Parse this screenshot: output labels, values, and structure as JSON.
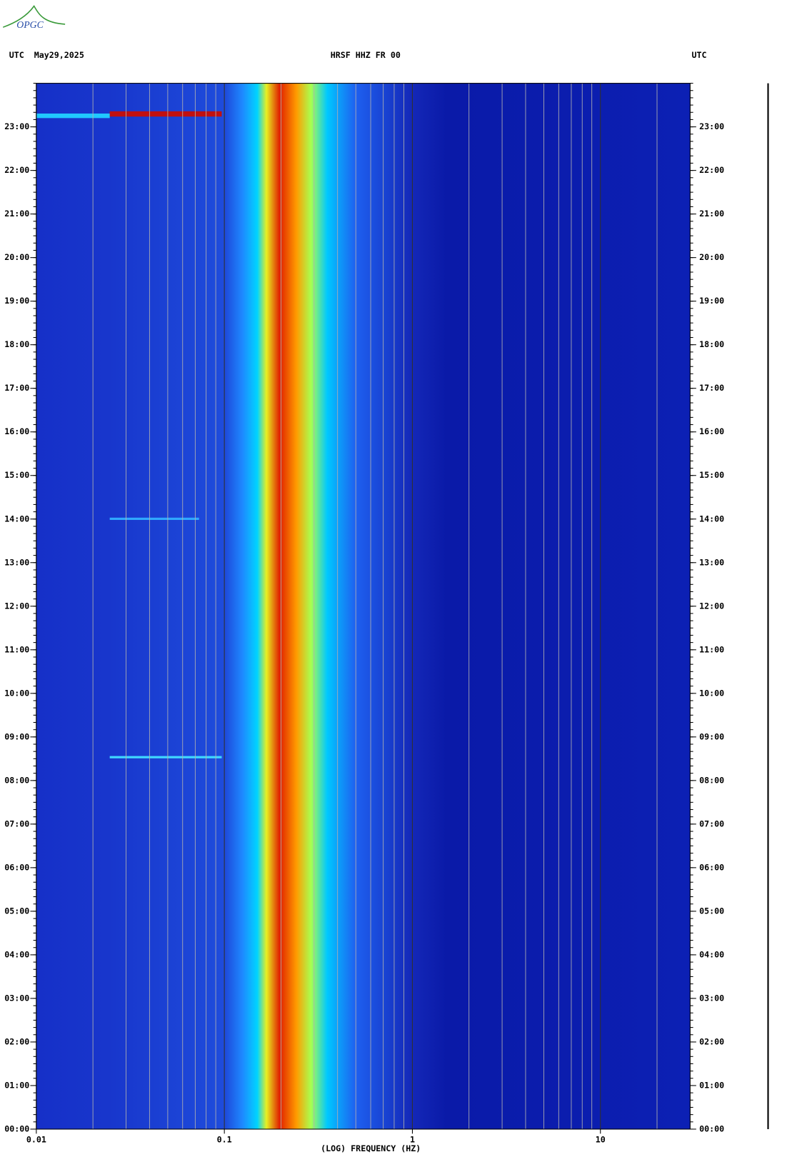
{
  "logo": "OPGC",
  "chart_data": {
    "type": "spectrogram",
    "header_left": "UTC  May29,2025",
    "title": "HRSF HHZ FR 00",
    "header_right": "UTC",
    "xlabel": "(LOG) FREQUENCY (HZ)",
    "xscale": "log",
    "xlim": [
      0.01,
      30
    ],
    "xticks": [
      0.01,
      0.1,
      1,
      10
    ],
    "ylim": [
      0,
      24
    ],
    "yticks": [
      {
        "value": 0,
        "label": "00:00"
      },
      {
        "value": 1,
        "label": "01:00"
      },
      {
        "value": 2,
        "label": "02:00"
      },
      {
        "value": 3,
        "label": "03:00"
      },
      {
        "value": 4,
        "label": "04:00"
      },
      {
        "value": 5,
        "label": "05:00"
      },
      {
        "value": 6,
        "label": "06:00"
      },
      {
        "value": 7,
        "label": "07:00"
      },
      {
        "value": 8,
        "label": "08:00"
      },
      {
        "value": 9,
        "label": "09:00"
      },
      {
        "value": 10,
        "label": "10:00"
      },
      {
        "value": 11,
        "label": "11:00"
      },
      {
        "value": 12,
        "label": "12:00"
      },
      {
        "value": 13,
        "label": "13:00"
      },
      {
        "value": 14,
        "label": "14:00"
      },
      {
        "value": 15,
        "label": "15:00"
      },
      {
        "value": 16,
        "label": "16:00"
      },
      {
        "value": 17,
        "label": "17:00"
      },
      {
        "value": 18,
        "label": "18:00"
      },
      {
        "value": 19,
        "label": "19:00"
      },
      {
        "value": 20,
        "label": "20:00"
      },
      {
        "value": 21,
        "label": "21:00"
      },
      {
        "value": 22,
        "label": "22:00"
      },
      {
        "value": 23,
        "label": "23:00"
      }
    ],
    "grid": true
  }
}
